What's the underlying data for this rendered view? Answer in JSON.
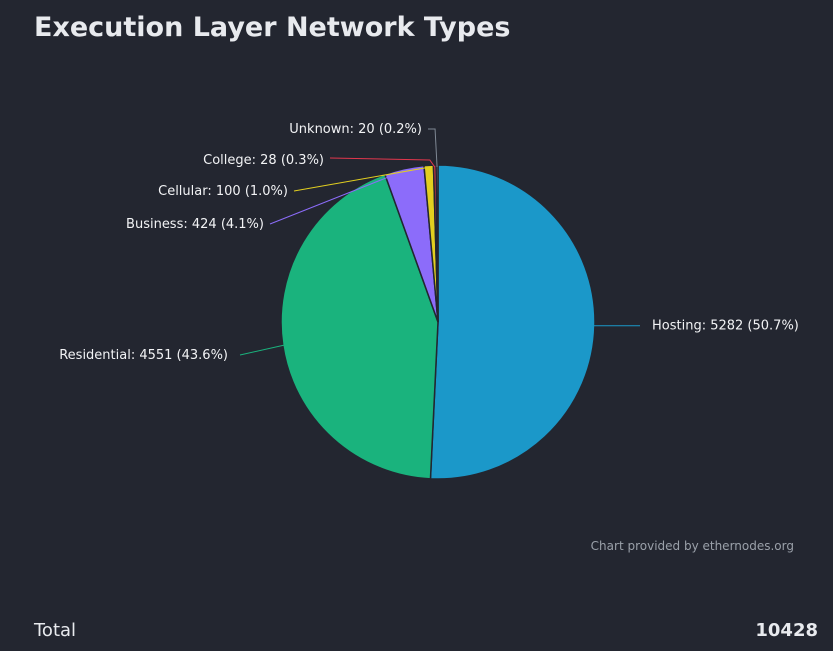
{
  "title": "Execution Layer Network Types",
  "footer": {
    "total_label": "Total",
    "total_value": "10428"
  },
  "chart_data": {
    "type": "pie",
    "credits": "Chart provided by ethernodes.org",
    "slices": [
      {
        "name": "Hosting",
        "value": 5282,
        "percent": "50.7%",
        "label": "Hosting: 5282 (50.7%)",
        "color": "#1b98c9"
      },
      {
        "name": "Residential",
        "value": 4551,
        "percent": "43.6%",
        "label": "Residential: 4551 (43.6%)",
        "color": "#1ab37d"
      },
      {
        "name": "Business",
        "value": 424,
        "percent": "4.1%",
        "label": "Business: 424 (4.1%)",
        "color": "#8c6cfa"
      },
      {
        "name": "Cellular",
        "value": 100,
        "percent": "1.0%",
        "label": "Cellular: 100 (1.0%)",
        "color": "#e2cf20"
      },
      {
        "name": "College",
        "value": 28,
        "percent": "0.3%",
        "label": "College: 28 (0.3%)",
        "color": "#e2374d"
      },
      {
        "name": "Unknown",
        "value": 20,
        "percent": "0.2%",
        "label": "Unknown: 20 (0.2%)",
        "color": "#7f8894"
      }
    ]
  }
}
